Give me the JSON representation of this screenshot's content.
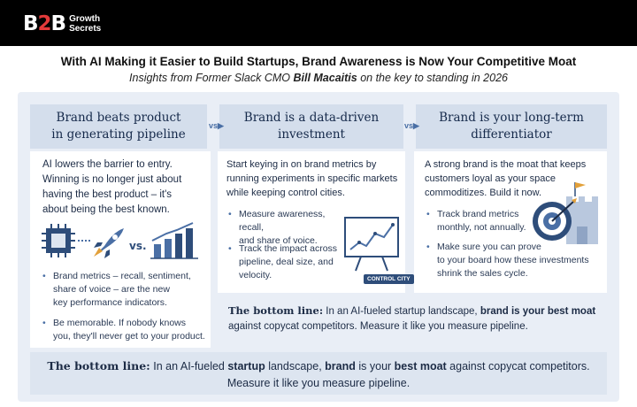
{
  "logo": {
    "b": "B",
    "two": "2",
    "b2": "B",
    "line1": "Growth",
    "line2": "Secrets"
  },
  "headline": "With AI Making it Easier to Build Startups, Brand Awareness is Now Your Competitive Moat",
  "subhead": {
    "pre": "Insights from Former Slack CMO ",
    "name": "Bill Macaitis",
    "post": " on the key to standing in 2026"
  },
  "vs_label": "vs",
  "columns": [
    {
      "title_line1": "Brand beats product",
      "title_line2": "in generating pipeline",
      "intro": [
        "AI lowers the barrier to entry.",
        "Winning is no longer just about",
        "having the best product – it's",
        "about being the best known."
      ],
      "compare_label": "vs.",
      "bullets": [
        [
          "Brand metrics – recall, sentiment,",
          "share of voice – are the new",
          "key performance indicators."
        ],
        [
          "Be memorable. If nobody knows",
          "you, they'll never get to your product."
        ]
      ]
    },
    {
      "title_line1": "Brand is a data-driven",
      "title_line2": "investment",
      "intro": [
        "Start keying in on brand metrics by",
        "running experiments in specific markets",
        "while keeping control cities."
      ],
      "bullets": [
        [
          "Measure awareness, recall,",
          "and share of voice."
        ],
        [
          "Track the impact across",
          "pipeline, deal size, and",
          "velocity."
        ]
      ],
      "tag": "CONTROL CITY"
    },
    {
      "title_line1": "Brand is your long-term",
      "title_line2": "differentiator",
      "intro": [
        "A strong brand is the moat that keeps",
        "customers loyal as your space",
        "commoditizes. Build it now."
      ],
      "bullets": [
        [
          "Track brand metrics",
          "monthly, not annually."
        ],
        [
          "Make sure you can prove",
          "to your board how these investments",
          "shrink the sales cycle."
        ]
      ]
    }
  ],
  "bottom_line": {
    "label": "The bottom line:",
    "small_line1_pre": " In an AI-fueled startup landscape, ",
    "small_line1_bold": "brand is your best moat",
    "small_line2": "against copycat competitors. Measure it like you measure pipeline.",
    "big_pre": " In an AI-fueled ",
    "big_b1": "startup",
    "big_mid": " landscape, ",
    "big_b2": "brand",
    "big_mid2": " is your ",
    "big_b3": "best moat",
    "big_post": " against copycat competitors.",
    "big_line2": "Measure it like you measure pipeline."
  },
  "colors": {
    "navy": "#1c2b45",
    "accent": "#4a6fa5",
    "brand_red": "#e23a3a",
    "panel": "#e9eef6"
  },
  "icons": [
    "cpu-chip-icon",
    "rocket-icon",
    "bar-chart-icon",
    "line-chart-board-icon",
    "castle-icon",
    "target-icon"
  ]
}
